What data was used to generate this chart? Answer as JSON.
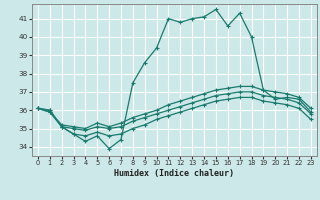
{
  "xlabel": "Humidex (Indice chaleur)",
  "background_color": "#cce8e8",
  "grid_color": "#ffffff",
  "line_color": "#1a7a6e",
  "xlim": [
    -0.5,
    23.5
  ],
  "ylim": [
    33.5,
    41.8
  ],
  "yticks": [
    34,
    35,
    36,
    37,
    38,
    39,
    40,
    41
  ],
  "xticks": [
    0,
    1,
    2,
    3,
    4,
    5,
    6,
    7,
    8,
    9,
    10,
    11,
    12,
    13,
    14,
    15,
    16,
    17,
    18,
    19,
    20,
    21,
    22,
    23
  ],
  "series": [
    [
      36.1,
      36.0,
      35.1,
      34.7,
      34.3,
      34.6,
      33.9,
      34.4,
      37.5,
      38.6,
      39.4,
      41.0,
      40.8,
      41.0,
      41.1,
      41.5,
      40.6,
      41.3,
      40.0,
      37.1,
      36.6,
      36.7,
      36.6,
      35.9
    ],
    [
      36.1,
      35.9,
      35.2,
      35.1,
      35.0,
      35.3,
      35.1,
      35.3,
      35.6,
      35.8,
      36.0,
      36.3,
      36.5,
      36.7,
      36.9,
      37.1,
      37.2,
      37.3,
      37.3,
      37.1,
      37.0,
      36.9,
      36.7,
      36.1
    ],
    [
      36.1,
      35.9,
      35.1,
      35.0,
      34.9,
      35.1,
      35.0,
      35.1,
      35.4,
      35.6,
      35.8,
      36.0,
      36.2,
      36.4,
      36.6,
      36.8,
      36.9,
      37.0,
      37.0,
      36.8,
      36.7,
      36.6,
      36.4,
      35.8
    ],
    [
      36.1,
      36.0,
      35.1,
      34.7,
      34.6,
      34.8,
      34.6,
      34.7,
      35.0,
      35.2,
      35.5,
      35.7,
      35.9,
      36.1,
      36.3,
      36.5,
      36.6,
      36.7,
      36.7,
      36.5,
      36.4,
      36.3,
      36.1,
      35.5
    ]
  ]
}
